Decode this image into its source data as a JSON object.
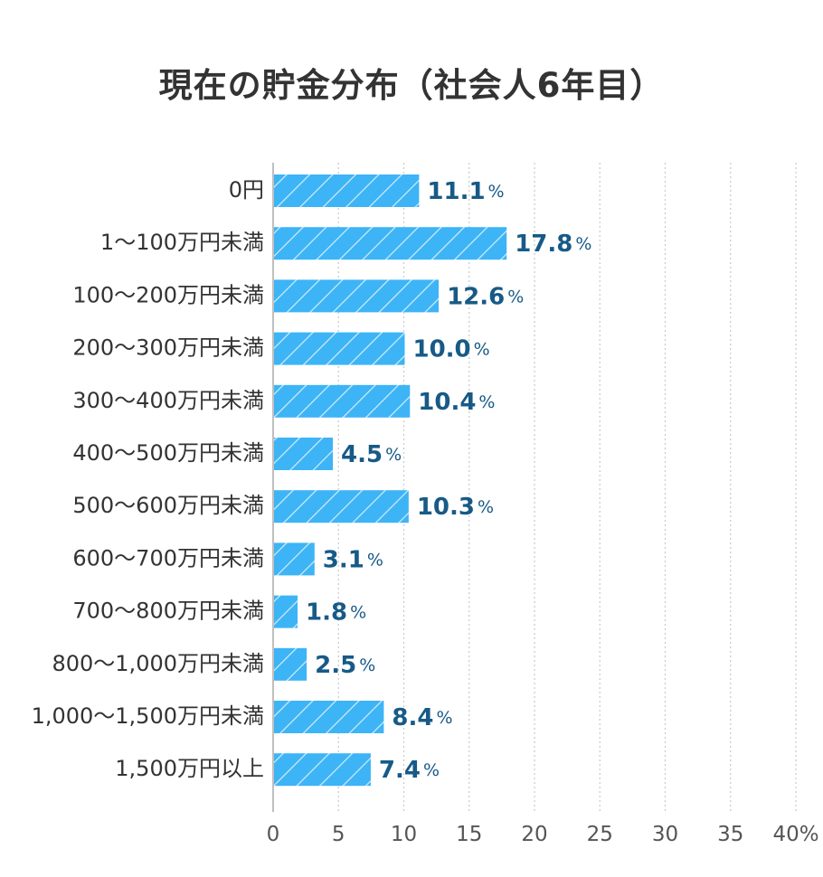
{
  "chart_data": {
    "type": "bar",
    "orientation": "horizontal",
    "title": "現在の貯金分布（社会人6年目）",
    "categories": [
      "0円",
      "1〜100万円未満",
      "100〜200万円未満",
      "200〜300万円未満",
      "300〜400万円未満",
      "400〜500万円未満",
      "500〜600万円未満",
      "600〜700万円未満",
      "700〜800万円未満",
      "800〜1,000万円未満",
      "1,000〜1,500万円未満",
      "1,500万円以上"
    ],
    "values": [
      11.1,
      17.8,
      12.6,
      10.0,
      10.4,
      4.5,
      10.3,
      3.1,
      1.8,
      2.5,
      8.4,
      7.4
    ],
    "value_labels": [
      "11.1",
      "17.8",
      "12.6",
      "10.0",
      "10.4",
      "4.5",
      "10.3",
      "3.1",
      "1.8",
      "2.5",
      "8.4",
      "7.4"
    ],
    "value_unit": "%",
    "xlim": [
      0,
      40
    ],
    "x_ticks": [
      "0",
      "5",
      "10",
      "15",
      "20",
      "25",
      "30",
      "35",
      "40%"
    ],
    "grid": "vertical dotted",
    "bar_color": "#3db4f5",
    "bar_pattern": "diagonal white stripes",
    "value_label_color": "#175a87",
    "label_color": "#333333"
  }
}
